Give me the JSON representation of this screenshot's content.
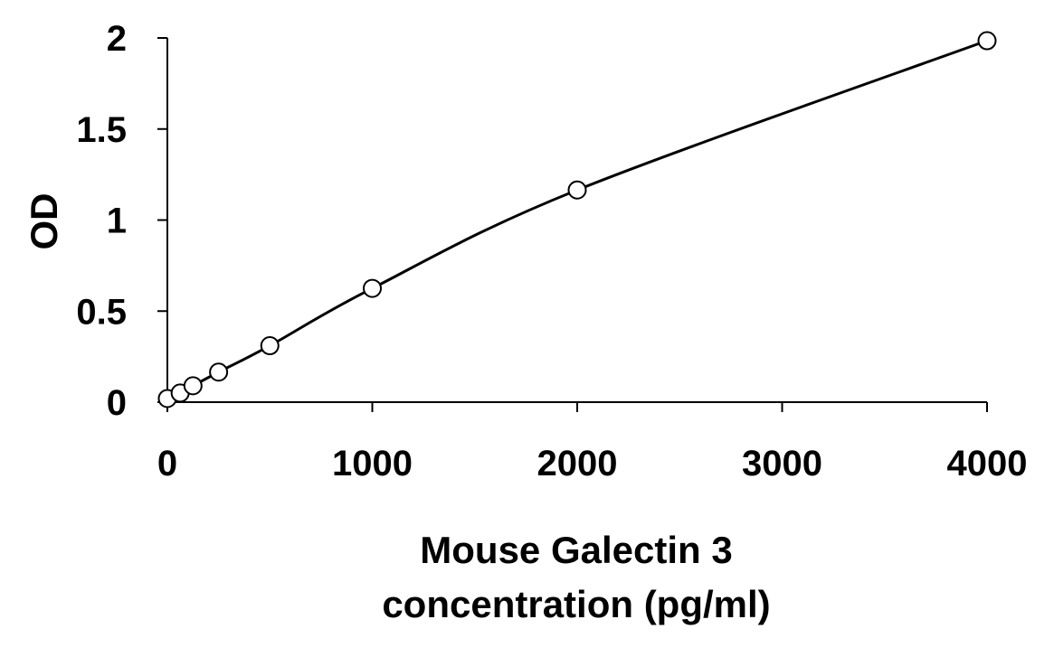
{
  "chart_data": {
    "type": "scatter",
    "title": "",
    "xlabel_lines": [
      "Mouse Galectin 3",
      "concentration (pg/ml)"
    ],
    "ylabel": "OD",
    "xlim": [
      0,
      4000
    ],
    "ylim": [
      0,
      2
    ],
    "x_ticks": [
      0,
      1000,
      2000,
      3000,
      4000
    ],
    "x_tick_labels": [
      "0",
      "1000",
      "2000",
      "3000",
      "4000"
    ],
    "y_ticks": [
      0,
      0.5,
      1,
      1.5,
      2
    ],
    "y_tick_labels": [
      "0",
      "0.5",
      "1",
      "1.5",
      "2"
    ],
    "grid": false,
    "legend": "none",
    "series": [
      {
        "marker": "open-circle",
        "fit": "smooth-curve",
        "points": [
          {
            "x": 0,
            "y": 0.02
          },
          {
            "x": 62.5,
            "y": 0.05
          },
          {
            "x": 125,
            "y": 0.09
          },
          {
            "x": 250,
            "y": 0.165
          },
          {
            "x": 500,
            "y": 0.31
          },
          {
            "x": 1000,
            "y": 0.625
          },
          {
            "x": 2000,
            "y": 1.165
          },
          {
            "x": 4000,
            "y": 1.985
          }
        ]
      }
    ],
    "colors": {
      "line": "#000000",
      "marker_stroke": "#000000",
      "marker_fill": "#ffffff"
    }
  }
}
